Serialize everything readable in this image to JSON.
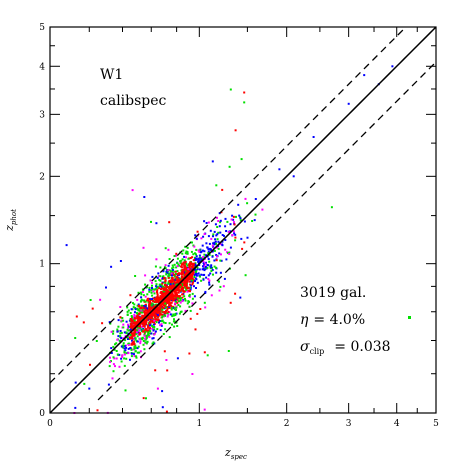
{
  "chart_data": {
    "type": "scatter",
    "xlabel": "z",
    "xlabel_sub": "spec",
    "ylabel": "z",
    "ylabel_sub": "phot",
    "xscale": "log(1+z)",
    "yscale": "log(1+z)",
    "xlim": [
      0,
      5
    ],
    "ylim": [
      0,
      5
    ],
    "x_ticks": [
      {
        "value": 0,
        "label": "0"
      },
      {
        "value": 1,
        "label": "1"
      },
      {
        "value": 2,
        "label": "2"
      },
      {
        "value": 3,
        "label": "3"
      },
      {
        "value": 4,
        "label": "4"
      },
      {
        "value": 5,
        "label": "5"
      }
    ],
    "y_ticks": [
      {
        "value": 0,
        "label": "0"
      },
      {
        "value": 1,
        "label": "1"
      },
      {
        "value": 2,
        "label": "2"
      },
      {
        "value": 3,
        "label": "3"
      },
      {
        "value": 4,
        "label": "4"
      },
      {
        "value": 5,
        "label": "5"
      }
    ],
    "reference_lines": [
      {
        "style": "solid",
        "relation": "z_phot = z_spec"
      },
      {
        "style": "dashed",
        "relation": "z_phot = z_spec + 0.15(1+z_spec)"
      },
      {
        "style": "dashed",
        "relation": "z_phot = z_spec - 0.15(1+z_spec)"
      }
    ],
    "series_colors": [
      "#ff0000",
      "#00e000",
      "#0000ff",
      "#ff00ff"
    ],
    "outlier_marker_color": "#00e000",
    "annotations": {
      "field": "W1",
      "sample": "calibspec",
      "count": "3019 gal.",
      "eta_symbol": "η",
      "eta_value": "= 4.0%",
      "sigma_symbol": "σ",
      "sigma_sub": "clip",
      "sigma_value": "= 0.038"
    }
  }
}
